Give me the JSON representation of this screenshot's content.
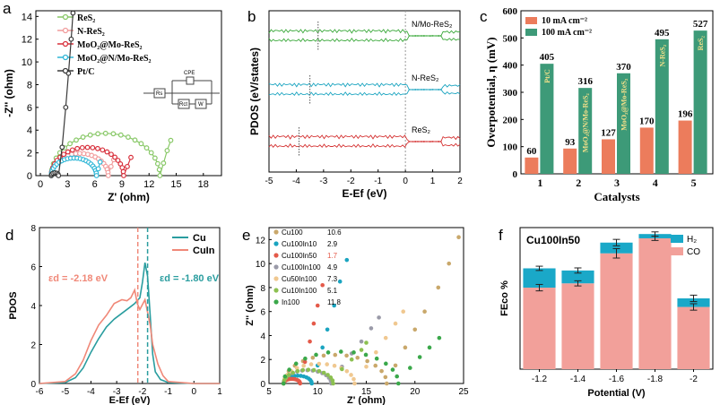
{
  "chart_data": [
    {
      "panel": "a",
      "type": "scatter",
      "xlabel": "Z' (ohm)",
      "ylabel": "-Z'' (ohm)",
      "xticks": [
        "0",
        "3",
        "6",
        "9",
        "12",
        "15",
        "18"
      ],
      "yticks": [
        "0",
        "2",
        "4",
        "6",
        "8",
        "10",
        "12",
        "14"
      ],
      "xlim": [
        -0.5,
        20
      ],
      "ylim": [
        0,
        14.5
      ],
      "circuit_labels": [
        "CPE",
        "Rs",
        "Rct",
        "W"
      ],
      "series": [
        {
          "name": "ReS₂",
          "color": "#88c867",
          "x0": 1.2,
          "x1": 13.2,
          "tail": [
            [
              13.2,
              0
            ],
            [
              13.6,
              1.1
            ],
            [
              14,
              2.2
            ],
            [
              14.4,
              3.1
            ]
          ]
        },
        {
          "name": "N-ReS₂",
          "color": "#f19c9c",
          "x0": 1.2,
          "x1": 7.5,
          "tail": [
            [
              7.5,
              0
            ],
            [
              7.8,
              0.8
            ],
            [
              8.1,
              1.4
            ]
          ]
        },
        {
          "name": "MoO₂@Mo-ReS₂",
          "color": "#d8303c",
          "x0": 1.2,
          "x1": 9.2,
          "tail": [
            [
              9.2,
              0
            ],
            [
              9.6,
              0.8
            ],
            [
              10.0,
              1.6
            ]
          ]
        },
        {
          "name": "MoO₂@N/Mo-ReS₂",
          "color": "#2fb6d6",
          "x0": 1.2,
          "x1": 6.2,
          "tail": [
            [
              6.2,
              0
            ],
            [
              6.4,
              0.6
            ],
            [
              6.6,
              1.2
            ]
          ]
        },
        {
          "name": "Pt/C",
          "color": "#3a3a3a",
          "x0": 1.2,
          "x1": 2.0,
          "tail": [
            [
              2.0,
              0
            ],
            [
              2.4,
              2.5
            ],
            [
              2.8,
              6
            ],
            [
              3.1,
              9
            ],
            [
              3.4,
              12
            ],
            [
              3.6,
              14.3
            ]
          ]
        }
      ]
    },
    {
      "panel": "b",
      "type": "line",
      "xlabel": "E-E_f (eV)",
      "ylabel": "PDOS (eV/states)",
      "xticks": [
        "-5",
        "-4",
        "-3",
        "-2",
        "-1",
        "0",
        "1",
        "2"
      ],
      "xlim": [
        -5,
        2
      ],
      "series": [
        {
          "name": "N/Mo-ReS₂",
          "color": "#3aa83a"
        },
        {
          "name": "N-ReS₂",
          "color": "#1aa4c0"
        },
        {
          "name": "ReS₂",
          "color": "#d43030"
        }
      ]
    },
    {
      "panel": "c",
      "type": "bar",
      "xlabel": "Catalysts",
      "ylabel": "Overpotential, η (mV)",
      "categories": [
        "1",
        "2",
        "3",
        "4",
        "5"
      ],
      "ylim": [
        0,
        600
      ],
      "yticks": [
        "0",
        "100",
        "200",
        "300",
        "400",
        "500",
        "600"
      ],
      "series": [
        {
          "name": "10 mA cm⁻²",
          "color": "#ec7c5c",
          "values": [
            60,
            93,
            127,
            170,
            196
          ]
        },
        {
          "name": "100 mA cm⁻²",
          "color": "#3d9a78",
          "values": [
            405,
            316,
            370,
            495,
            527
          ]
        }
      ],
      "bar_labels": [
        "Pt/C",
        "MoO₂@N/Mo-ReS₂",
        "MoO₂@Mo-ReS₂",
        "N-ReS₂",
        "ReS₂"
      ]
    },
    {
      "panel": "d",
      "type": "line",
      "xlabel": "E-E_f (eV)",
      "ylabel": "PDOS",
      "xlim": [
        -6,
        1
      ],
      "ylim": [
        0,
        8
      ],
      "xticks": [
        "-6",
        "-5",
        "-4",
        "-3",
        "-2",
        "-1",
        "0",
        "1"
      ],
      "yticks": [
        "0",
        "2",
        "4",
        "6",
        "8"
      ],
      "series": [
        {
          "name": "Cu",
          "color": "#2a9d9f",
          "x": [
            -6,
            -5,
            -4.6,
            -4.3,
            -4,
            -3.7,
            -3.4,
            -3.1,
            -2.8,
            -2.5,
            -2.3,
            -2.1,
            -2.0,
            -1.9,
            -1.8,
            -1.7,
            -1.6,
            -1.5,
            -1.3,
            -1,
            0,
            1
          ],
          "y": [
            0,
            0.05,
            0.3,
            0.8,
            1.6,
            2.3,
            2.9,
            3.3,
            3.6,
            3.9,
            4.1,
            4.4,
            5.2,
            6.2,
            5.5,
            3.5,
            1.5,
            0.6,
            0.2,
            0.05,
            0,
            0
          ]
        },
        {
          "name": "CuIn",
          "color": "#f08878",
          "x": [
            -6,
            -5,
            -4.6,
            -4.3,
            -4,
            -3.7,
            -3.4,
            -3.1,
            -2.8,
            -2.6,
            -2.45,
            -2.3,
            -2.2,
            -2.1,
            -1.9,
            -1.7,
            -1.6,
            -1.4,
            -1.2,
            -1,
            0,
            1
          ],
          "y": [
            0,
            0.1,
            0.5,
            1.2,
            2.2,
            3.0,
            3.5,
            4.1,
            4.3,
            4.25,
            4.4,
            4.8,
            4.1,
            3.8,
            4.3,
            3.0,
            2.0,
            1.0,
            0.4,
            0.1,
            0,
            0
          ]
        }
      ],
      "annotations": [
        {
          "text": "ε_d = -2.18 eV",
          "x": -2.18,
          "color": "#f08878"
        },
        {
          "text": "ε_d = -1.80 eV",
          "x": -1.8,
          "color": "#2a9d9f"
        }
      ]
    },
    {
      "panel": "e",
      "type": "scatter",
      "xlabel": "Z' (ohm)",
      "ylabel": "Z'' (ohm)",
      "xlim": [
        5,
        25
      ],
      "ylim": [
        0,
        13
      ],
      "xticks": [
        "5",
        "10",
        "15",
        "20",
        "25"
      ],
      "yticks": [
        "0",
        "2",
        "4",
        "6",
        "8",
        "10",
        "12"
      ],
      "series": [
        {
          "name": "Cu100",
          "value": "10.6",
          "color": "#c9a86b",
          "x0": 6.5,
          "x1": 17.1,
          "tail": [
            [
              17.1,
              0.3
            ],
            [
              18,
              1.5
            ],
            [
              19,
              3
            ],
            [
              20,
              4.5
            ],
            [
              21,
              6
            ],
            [
              22.4,
              8
            ],
            [
              23.5,
              10
            ],
            [
              24.5,
              12.2
            ]
          ]
        },
        {
          "name": "Cu100In10",
          "value": "2.9",
          "color": "#1aa4c0",
          "x0": 6.5,
          "x1": 9.4,
          "tail": [
            [
              9.4,
              0.3
            ],
            [
              10,
              1.5
            ],
            [
              10.5,
              3
            ],
            [
              11,
              4.5
            ],
            [
              11.7,
              6.5
            ],
            [
              12.3,
              8.5
            ],
            [
              13,
              10.3
            ]
          ]
        },
        {
          "name": "Cu100In50",
          "value": "1.7",
          "color": "#e45a4a",
          "x0": 6.5,
          "x1": 8.2,
          "tail": [
            [
              8.2,
              0.3
            ],
            [
              8.7,
              1.8
            ],
            [
              9.2,
              3.5
            ],
            [
              9.6,
              5
            ],
            [
              10,
              6.5
            ],
            [
              10.5,
              8.2
            ]
          ]
        },
        {
          "name": "Cu100In100",
          "value": "4.9",
          "color": "#9a9aa8",
          "x0": 6.5,
          "x1": 11.4,
          "tail": [
            [
              11.4,
              0.3
            ],
            [
              12.5,
              1.4
            ],
            [
              13.5,
              2.5
            ],
            [
              14.5,
              3.5
            ],
            [
              15.5,
              4.6
            ],
            [
              16.3,
              5.5
            ]
          ]
        },
        {
          "name": "Cu50In100",
          "value": "7.3",
          "color": "#f0c890",
          "x0": 6.5,
          "x1": 13.8,
          "tail": [
            [
              13.8,
              0.3
            ],
            [
              15,
              1.4
            ],
            [
              16,
              2.6
            ],
            [
              17,
              3.8
            ],
            [
              18,
              5
            ],
            [
              18.8,
              6
            ]
          ]
        },
        {
          "name": "Cu10In100",
          "value": "5.1",
          "color": "#8cc050",
          "x0": 6.5,
          "x1": 11.6,
          "tail": [
            [
              11.6,
              0.3
            ],
            [
              12.5,
              1.2
            ],
            [
              13.5,
              2
            ],
            [
              14.5,
              2.8
            ],
            [
              15,
              3.4
            ]
          ]
        },
        {
          "name": "In100",
          "value": "11.8",
          "color": "#3aa84a",
          "x0": 6.5,
          "x1": 18.3,
          "tail": [
            [
              18.3,
              0.3
            ],
            [
              19.5,
              1.3
            ],
            [
              20.5,
              2.2
            ],
            [
              21.5,
              3
            ],
            [
              22.5,
              3.8
            ]
          ]
        }
      ]
    },
    {
      "panel": "f",
      "type": "bar",
      "title": "Cu100In50",
      "xlabel": "Potential (V)",
      "ylabel": "FEco %",
      "categories": [
        "-1.2",
        "-1.4",
        "-1.6",
        "-1.8",
        "-2"
      ],
      "ylim": [
        0,
        66
      ],
      "series": [
        {
          "name": "CO",
          "color": "#f2a09a",
          "values": [
            38,
            40,
            54,
            61,
            29
          ],
          "errors": [
            1.5,
            1.2,
            2.2,
            1.0,
            1.5
          ]
        },
        {
          "name": "H₂",
          "color": "#1aa8c8",
          "values": [
            9,
            6,
            5,
            2,
            4
          ],
          "errors": [
            1.0,
            1.2,
            1.5,
            1.0,
            1.5
          ]
        }
      ]
    }
  ],
  "panel_letters": [
    "a",
    "b",
    "c",
    "d",
    "e",
    "f"
  ]
}
